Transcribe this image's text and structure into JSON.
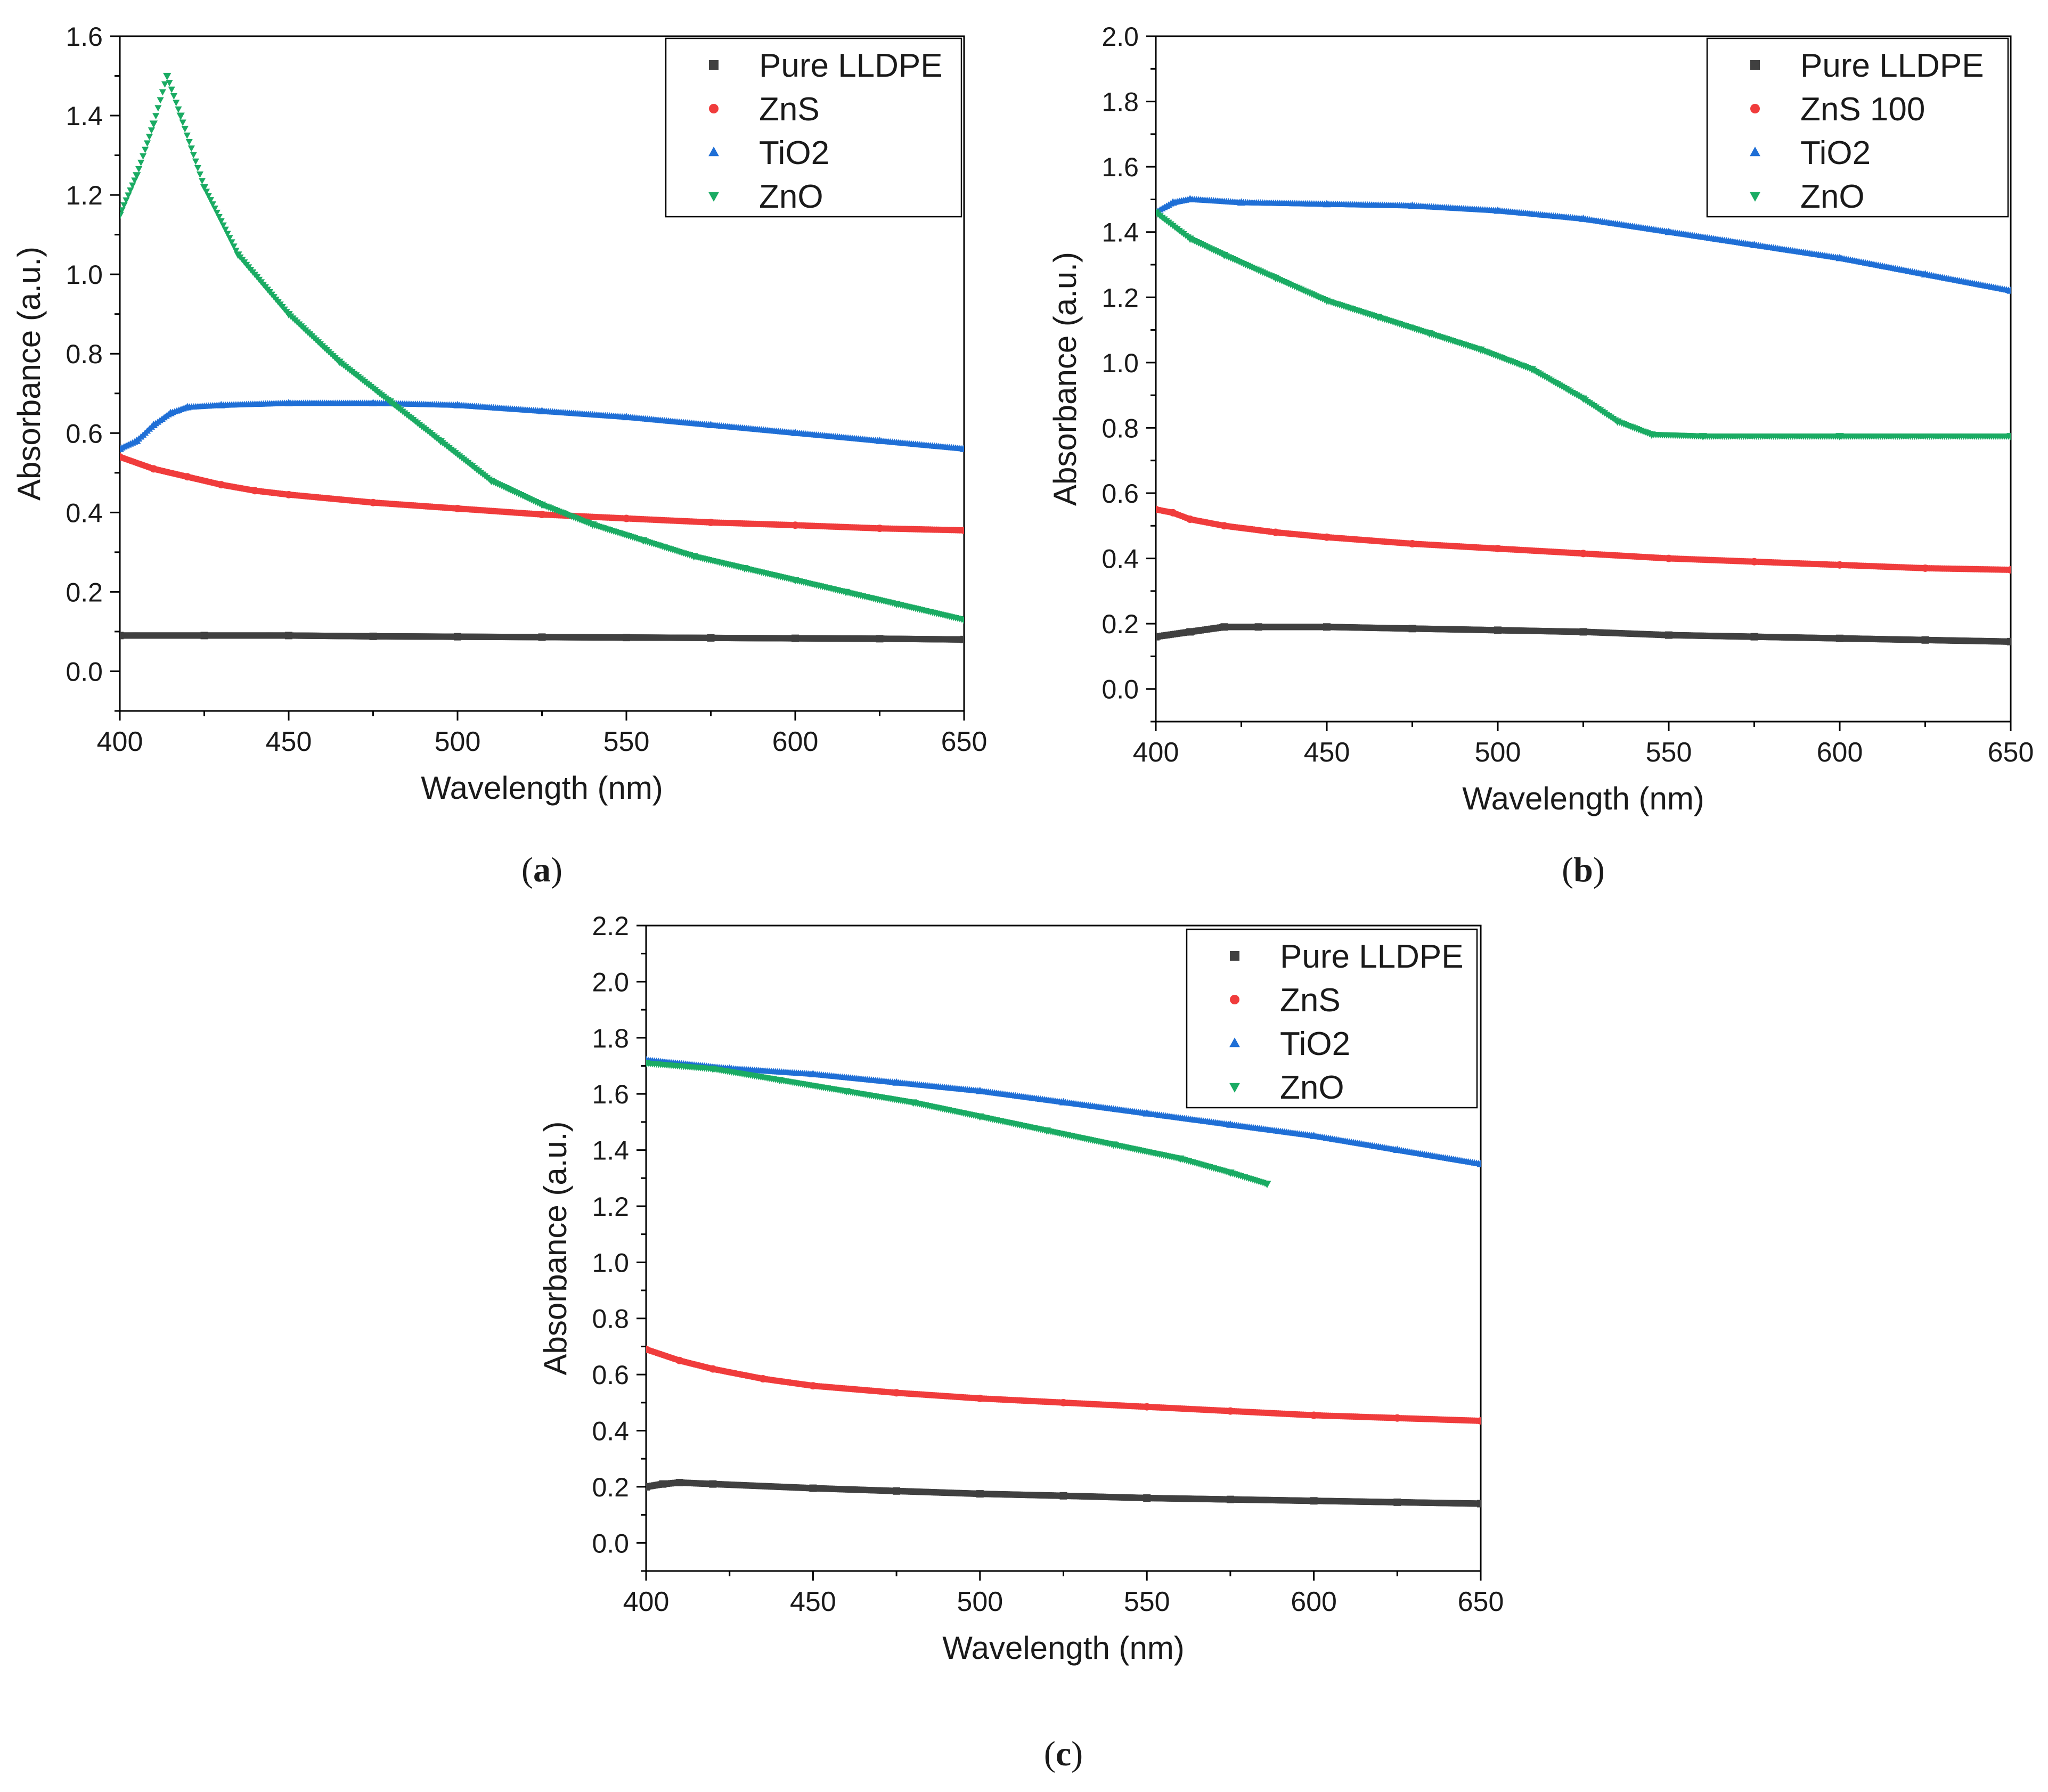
{
  "chart_data": [
    {
      "type": "scatter",
      "panel_caption": "(a)",
      "panel_letter": "a",
      "xlabel": "Wavelength (nm)",
      "ylabel": "Absorbance (a.u.)",
      "xlim": [
        400,
        650
      ],
      "ylim": [
        -0.1,
        1.6
      ],
      "x_ticks": [
        400,
        450,
        500,
        550,
        600,
        650
      ],
      "y_ticks": [
        0.0,
        0.2,
        0.4,
        0.6,
        0.8,
        1.0,
        1.2,
        1.4,
        1.6
      ],
      "grid": false,
      "legend_position": "top-right",
      "series": [
        {
          "name": "Pure LLDPE",
          "color": "#404040",
          "marker": "square",
          "x": [
            400,
            425,
            450,
            475,
            500,
            525,
            550,
            575,
            600,
            625,
            650
          ],
          "y": [
            0.09,
            0.09,
            0.09,
            0.088,
            0.087,
            0.086,
            0.085,
            0.084,
            0.083,
            0.082,
            0.08
          ]
        },
        {
          "name": "ZnS",
          "color": "#f03c3c",
          "marker": "circle",
          "x": [
            400,
            410,
            420,
            430,
            440,
            450,
            475,
            500,
            525,
            550,
            575,
            600,
            625,
            650
          ],
          "y": [
            0.54,
            0.51,
            0.49,
            0.47,
            0.455,
            0.445,
            0.425,
            0.41,
            0.395,
            0.385,
            0.375,
            0.368,
            0.36,
            0.355
          ]
        },
        {
          "name": "TiO2",
          "color": "#1f6fd6",
          "marker": "triangle-up",
          "x": [
            400,
            405,
            410,
            415,
            420,
            430,
            450,
            475,
            500,
            525,
            550,
            575,
            600,
            625,
            650
          ],
          "y": [
            0.56,
            0.58,
            0.62,
            0.65,
            0.665,
            0.67,
            0.675,
            0.675,
            0.67,
            0.655,
            0.64,
            0.62,
            0.6,
            0.58,
            0.56
          ]
        },
        {
          "name": "ZnO",
          "color": "#1aab63",
          "marker": "triangle-down",
          "x": [
            400,
            405,
            410,
            414,
            418,
            425,
            435,
            450,
            465,
            480,
            495,
            510,
            525,
            540,
            555,
            570,
            585,
            600,
            615,
            630,
            650
          ],
          "y": [
            1.15,
            1.25,
            1.38,
            1.5,
            1.4,
            1.22,
            1.05,
            0.9,
            0.78,
            0.68,
            0.58,
            0.48,
            0.42,
            0.37,
            0.33,
            0.29,
            0.26,
            0.23,
            0.2,
            0.17,
            0.13
          ]
        }
      ]
    },
    {
      "type": "scatter",
      "panel_caption": "(b)",
      "panel_letter": "b",
      "xlabel": "Wavelength (nm)",
      "ylabel": "Absorbance (a.u.)",
      "xlim": [
        400,
        650
      ],
      "ylim": [
        -0.1,
        2.0
      ],
      "x_ticks": [
        400,
        450,
        500,
        550,
        600,
        650
      ],
      "y_ticks": [
        0.0,
        0.2,
        0.4,
        0.6,
        0.8,
        1.0,
        1.2,
        1.4,
        1.6,
        1.8,
        2.0
      ],
      "grid": false,
      "legend_position": "top-right",
      "series": [
        {
          "name": "Pure LLDPE",
          "color": "#404040",
          "marker": "square",
          "x": [
            400,
            410,
            420,
            430,
            450,
            475,
            500,
            525,
            550,
            575,
            600,
            625,
            650
          ],
          "y": [
            0.16,
            0.175,
            0.19,
            0.19,
            0.19,
            0.185,
            0.18,
            0.175,
            0.165,
            0.16,
            0.155,
            0.15,
            0.145
          ]
        },
        {
          "name": "ZnS 100",
          "color": "#f03c3c",
          "marker": "circle",
          "x": [
            400,
            405,
            410,
            420,
            435,
            450,
            475,
            500,
            525,
            550,
            575,
            600,
            625,
            650
          ],
          "y": [
            0.55,
            0.54,
            0.52,
            0.5,
            0.48,
            0.465,
            0.445,
            0.43,
            0.415,
            0.4,
            0.39,
            0.38,
            0.37,
            0.365
          ]
        },
        {
          "name": "TiO2",
          "color": "#1f6fd6",
          "marker": "triangle-up",
          "x": [
            400,
            405,
            410,
            425,
            450,
            475,
            500,
            525,
            550,
            575,
            600,
            625,
            650
          ],
          "y": [
            1.46,
            1.49,
            1.5,
            1.49,
            1.485,
            1.48,
            1.465,
            1.44,
            1.4,
            1.36,
            1.32,
            1.27,
            1.22
          ]
        },
        {
          "name": "ZnO",
          "color": "#1aab63",
          "marker": "triangle-down",
          "x": [
            400,
            410,
            420,
            435,
            450,
            465,
            480,
            495,
            510,
            525,
            535,
            545,
            560,
            600,
            650
          ],
          "y": [
            1.46,
            1.38,
            1.33,
            1.26,
            1.19,
            1.14,
            1.09,
            1.04,
            0.98,
            0.89,
            0.82,
            0.78,
            0.775,
            0.775,
            0.775
          ]
        }
      ]
    },
    {
      "type": "scatter",
      "panel_caption": "(c)",
      "panel_letter": "c",
      "xlabel": "Wavelength (nm)",
      "ylabel": "Absorbance (a.u.)",
      "xlim": [
        400,
        650
      ],
      "ylim": [
        -0.1,
        2.2
      ],
      "x_ticks": [
        400,
        450,
        500,
        550,
        600,
        650
      ],
      "y_ticks": [
        0.0,
        0.2,
        0.4,
        0.6,
        0.8,
        1.0,
        1.2,
        1.4,
        1.6,
        1.8,
        2.0,
        2.2
      ],
      "grid": false,
      "legend_position": "top-right",
      "series": [
        {
          "name": "Pure LLDPE",
          "color": "#404040",
          "marker": "square",
          "x": [
            400,
            405,
            410,
            420,
            450,
            475,
            500,
            525,
            550,
            575,
            600,
            625,
            650
          ],
          "y": [
            0.2,
            0.21,
            0.215,
            0.21,
            0.195,
            0.185,
            0.175,
            0.168,
            0.16,
            0.155,
            0.15,
            0.145,
            0.14
          ]
        },
        {
          "name": "ZnS",
          "color": "#f03c3c",
          "marker": "circle",
          "x": [
            400,
            410,
            420,
            435,
            450,
            475,
            500,
            525,
            550,
            575,
            600,
            625,
            650
          ],
          "y": [
            0.69,
            0.65,
            0.62,
            0.585,
            0.56,
            0.535,
            0.515,
            0.5,
            0.485,
            0.47,
            0.455,
            0.445,
            0.435
          ]
        },
        {
          "name": "TiO2",
          "color": "#1f6fd6",
          "marker": "triangle-up",
          "x": [
            400,
            425,
            450,
            475,
            500,
            525,
            550,
            575,
            600,
            625,
            650
          ],
          "y": [
            1.72,
            1.69,
            1.67,
            1.64,
            1.61,
            1.57,
            1.53,
            1.49,
            1.45,
            1.4,
            1.35
          ]
        },
        {
          "name": "ZnO",
          "color": "#1aab63",
          "marker": "triangle-down",
          "x": [
            400,
            420,
            440,
            460,
            480,
            500,
            520,
            540,
            560,
            575,
            586
          ],
          "y": [
            1.71,
            1.69,
            1.65,
            1.61,
            1.57,
            1.52,
            1.47,
            1.42,
            1.37,
            1.32,
            1.28
          ]
        }
      ]
    }
  ]
}
